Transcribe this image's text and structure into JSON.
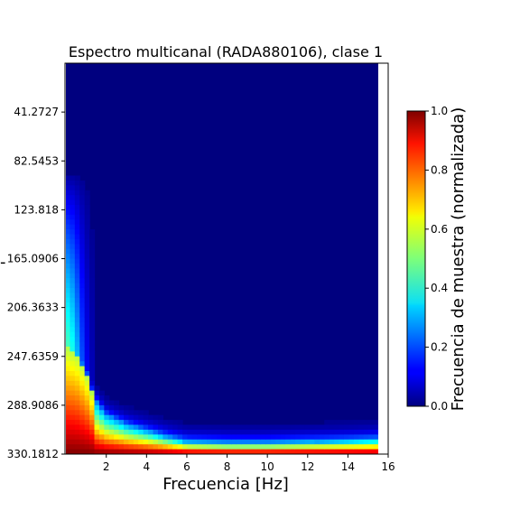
{
  "chart_data": {
    "type": "heatmap",
    "title": "Espectro multicanal (RADA880106), clase 1",
    "xlabel": "Frecuencia [Hz]",
    "ylabel": "",
    "colorbar_label": "Frecuencia de muestra (normalizada)",
    "colormap": "jet",
    "xlim": [
      -0.05,
      16
    ],
    "ylim_top_to_bottom": [
      0,
      330.1812
    ],
    "x_ticks": [
      2,
      4,
      6,
      8,
      10,
      12,
      14,
      16
    ],
    "x_tick_labels": [
      "2",
      "4",
      "6",
      "8",
      "10",
      "12",
      "14",
      "16"
    ],
    "y_ticks": [
      41.2727,
      82.5453,
      123.818,
      165.0906,
      206.3633,
      247.6359,
      288.9086,
      330.1812
    ],
    "y_tick_labels": [
      "41.2727",
      "82.5453",
      "123.818",
      "165.0906",
      "206.3633",
      "247.6359",
      "288.9086",
      "330.1812"
    ],
    "colorbar_ticks": [
      0.0,
      0.2,
      0.4,
      0.6,
      0.8,
      1.0
    ],
    "colorbar_tick_labels": [
      "0.0",
      "0.2",
      "0.4",
      "0.6",
      "0.8",
      "1.0"
    ],
    "data_x_extent": [
      -0.05,
      15.5
    ],
    "ridge_y_by_x": [
      [
        0.0,
        240
      ],
      [
        0.5,
        245
      ],
      [
        1.0,
        262
      ],
      [
        1.4,
        285
      ],
      [
        2.0,
        298
      ],
      [
        3.0,
        306
      ],
      [
        4.0,
        311
      ],
      [
        5.0,
        316
      ],
      [
        6.0,
        320
      ],
      [
        8.0,
        321
      ],
      [
        10.0,
        321
      ],
      [
        12.0,
        320
      ],
      [
        14.0,
        319
      ],
      [
        15.5,
        318
      ]
    ],
    "low_frequency_tail": {
      "x_max": 1.5,
      "y_min": 90,
      "peak_value": 0.45
    },
    "bottom_band_value": 0.95,
    "background_value": 0.0
  }
}
